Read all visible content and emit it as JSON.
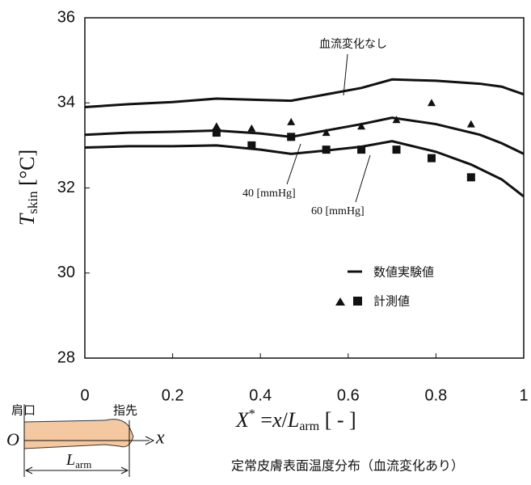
{
  "chart_data": {
    "type": "line",
    "y_label": [
      "T",
      "skin",
      " [°C]"
    ],
    "x_label": [
      "X",
      "*",
      " =",
      "x",
      "/",
      "L",
      "arm",
      " [ - ]"
    ],
    "caption": "定常皮膚表面温度分布（血流変化あり）",
    "xlim": [
      0,
      1
    ],
    "xticks": [
      0,
      0.2,
      0.4,
      0.6,
      0.8,
      1
    ],
    "ylim": [
      28,
      36
    ],
    "yticks": [
      28,
      30,
      32,
      34,
      36
    ],
    "lines": [
      {
        "name": "血流変化なし",
        "color": "#111111",
        "x": [
          0,
          0.1,
          0.2,
          0.3,
          0.4,
          0.47,
          0.55,
          0.63,
          0.7,
          0.8,
          0.9,
          0.95,
          1
        ],
        "values": [
          33.9,
          33.97,
          34.02,
          34.1,
          34.07,
          34.05,
          34.2,
          34.35,
          34.55,
          34.52,
          34.45,
          34.38,
          34.2
        ]
      },
      {
        "name": "40 [mmHg]",
        "color": "#111111",
        "x": [
          0,
          0.1,
          0.2,
          0.3,
          0.4,
          0.47,
          0.55,
          0.63,
          0.7,
          0.8,
          0.9,
          0.95,
          1
        ],
        "values": [
          33.25,
          33.3,
          33.32,
          33.35,
          33.28,
          33.2,
          33.35,
          33.5,
          33.65,
          33.5,
          33.25,
          33.05,
          32.8
        ]
      },
      {
        "name": "60 [mmHg]",
        "color": "#111111",
        "x": [
          0,
          0.1,
          0.2,
          0.3,
          0.4,
          0.47,
          0.55,
          0.63,
          0.7,
          0.8,
          0.88,
          0.95,
          1
        ],
        "values": [
          32.95,
          32.98,
          32.98,
          33.0,
          32.9,
          32.8,
          32.88,
          32.97,
          33.1,
          32.85,
          32.55,
          32.2,
          31.8
        ]
      }
    ],
    "markers": [
      {
        "shape": "triangle",
        "color": "#111111",
        "x": [
          0.3,
          0.38,
          0.47,
          0.55,
          0.63,
          0.71,
          0.79,
          0.88
        ],
        "values": [
          33.45,
          33.4,
          33.55,
          33.3,
          33.45,
          33.6,
          34.0,
          33.5
        ]
      },
      {
        "shape": "square",
        "color": "#111111",
        "x": [
          0.3,
          0.38,
          0.47,
          0.55,
          0.63,
          0.71,
          0.79,
          0.88
        ],
        "values": [
          33.3,
          33.0,
          33.2,
          32.9,
          32.9,
          32.9,
          32.7,
          32.25
        ]
      }
    ],
    "legend": [
      "数値実験値",
      "計測値"
    ],
    "arm": {
      "shoulder": "肩口",
      "fingertip": "指先",
      "origin": "O",
      "axis": "x",
      "length": [
        "L",
        "arm"
      ]
    }
  }
}
